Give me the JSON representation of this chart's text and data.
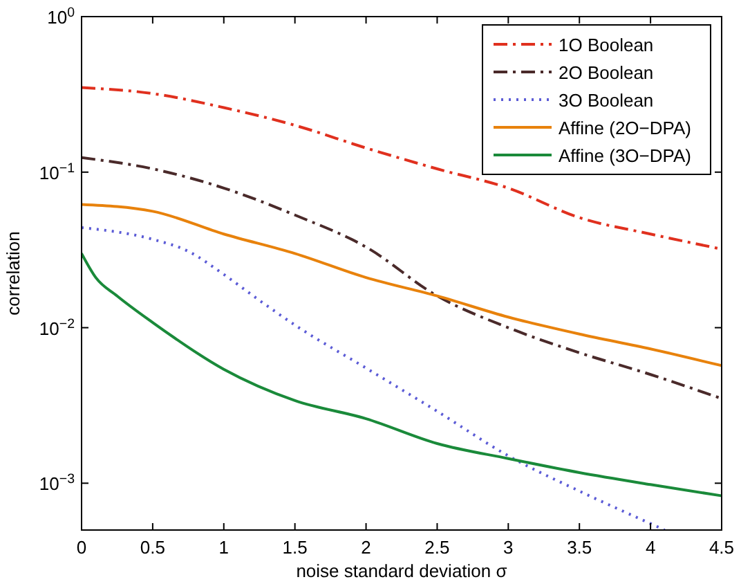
{
  "chart_data": {
    "type": "line",
    "xlabel": "noise standard deviation σ",
    "ylabel": "correlation",
    "log": "y",
    "grid": false,
    "legend": "top right",
    "xlim": [
      0,
      4.5
    ],
    "ylim": [
      0.0005,
      1
    ],
    "xticks": [
      0,
      0.5,
      1,
      1.5,
      2,
      2.5,
      3,
      3.5,
      4,
      4.5
    ],
    "yticks": [
      {
        "value": 0.001,
        "label": "10$^{−3}$"
      },
      {
        "value": 0.01,
        "label": "10$^{−2}$"
      },
      {
        "value": 0.1,
        "label": "10$^{−1}$"
      },
      {
        "value": 1,
        "label": "10$^{0}$"
      }
    ],
    "series": [
      {
        "name": "1O Boolean",
        "color": "#e0301e",
        "line_style": "dashed",
        "x": [
          0,
          0.5,
          1,
          1.5,
          2,
          2.5,
          3,
          3.5,
          4,
          4.5
        ],
        "values": [
          0.35,
          0.32,
          0.26,
          0.2,
          0.143,
          0.105,
          0.079,
          0.051,
          0.04,
          0.032
        ]
      },
      {
        "name": "2O Boolean",
        "color": "#4a2a2a",
        "line_style": "dashed",
        "x": [
          0,
          0.5,
          1,
          1.5,
          2,
          2.5,
          3,
          3.5,
          4,
          4.5
        ],
        "values": [
          0.124,
          0.105,
          0.079,
          0.053,
          0.033,
          0.016,
          0.01,
          0.0069,
          0.005,
          0.0035
        ]
      },
      {
        "name": "3O Boolean",
        "color": "#5b5bd6",
        "line_style": "dotted",
        "x": [
          0,
          0.5,
          0.75,
          1,
          1.25,
          1.5,
          2,
          2.5,
          3,
          3.5,
          4,
          4.1
        ],
        "values": [
          0.044,
          0.037,
          0.031,
          0.022,
          0.015,
          0.0104,
          0.0055,
          0.0029,
          0.0015,
          0.00089,
          0.00055,
          0.0005
        ]
      },
      {
        "name": "Affine (2O−DPA)",
        "color": "#e8820c",
        "line_style": "solid",
        "x": [
          0,
          0.5,
          1,
          1.5,
          2,
          2.5,
          3,
          3.5,
          4,
          4.5
        ],
        "values": [
          0.062,
          0.056,
          0.04,
          0.03,
          0.021,
          0.016,
          0.0117,
          0.0091,
          0.0073,
          0.0057
        ]
      },
      {
        "name": "Affine (3O−DPA)",
        "color": "#1a8a3a",
        "line_style": "solid",
        "x": [
          0,
          0.1,
          0.25,
          0.5,
          1,
          1.5,
          2,
          2.5,
          3,
          3.5,
          4,
          4.5
        ],
        "values": [
          0.03,
          0.021,
          0.016,
          0.0108,
          0.0054,
          0.0034,
          0.0026,
          0.0018,
          0.00144,
          0.00117,
          0.00098,
          0.00083
        ]
      }
    ]
  }
}
